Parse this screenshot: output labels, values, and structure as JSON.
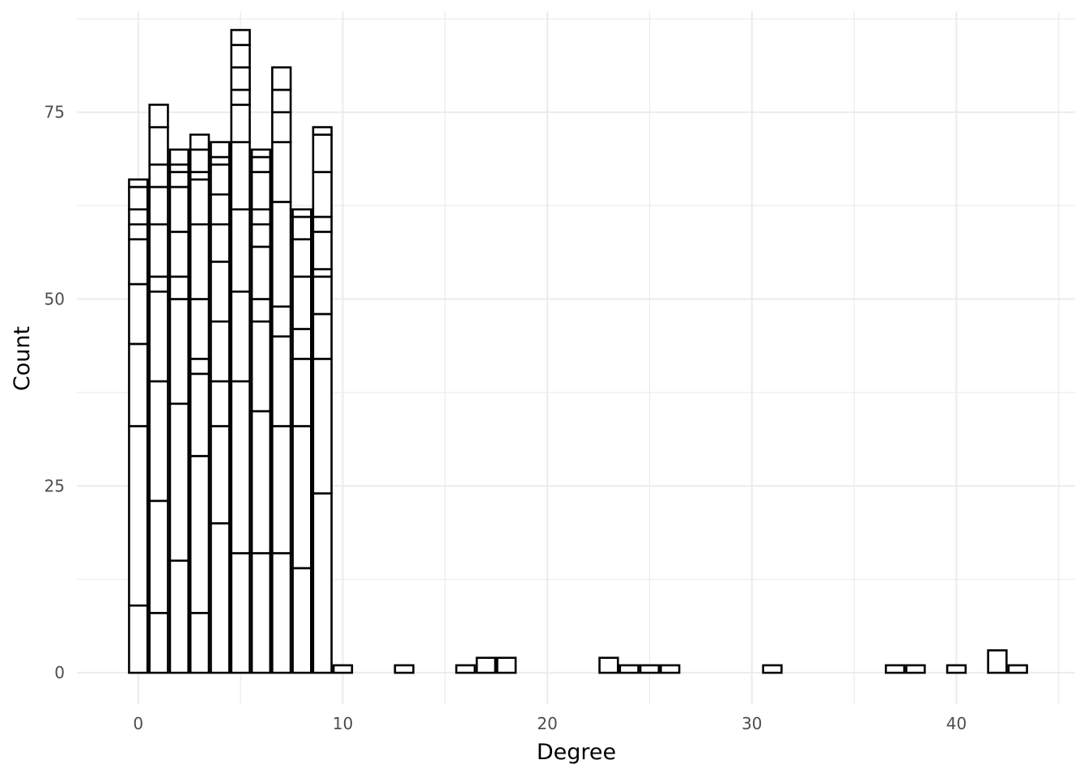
{
  "chart_data": {
    "type": "bar",
    "title": "",
    "xlabel": "Degree",
    "ylabel": "Count",
    "xlim": [
      -3,
      45.8
    ],
    "ylim": [
      -4.2,
      88.5
    ],
    "x_ticks": [
      0,
      10,
      20,
      30,
      40
    ],
    "y_ticks": [
      0,
      25,
      50,
      75
    ],
    "grid": true,
    "legend": "none",
    "bar_fill": "#ffffff",
    "bar_stroke": "#000000",
    "bin_width": 0.9,
    "stacked_bars": [
      {
        "x": 0,
        "boundaries": [
          0,
          9,
          33,
          44,
          52,
          58,
          60,
          62,
          65,
          66
        ]
      },
      {
        "x": 1,
        "boundaries": [
          0,
          8,
          23,
          39,
          51,
          53,
          60,
          65,
          68,
          73,
          76
        ]
      },
      {
        "x": 2,
        "boundaries": [
          0,
          15,
          36,
          50,
          53,
          59,
          65,
          67,
          68,
          70
        ]
      },
      {
        "x": 3,
        "boundaries": [
          0,
          8,
          29,
          40,
          42,
          50,
          60,
          66,
          67,
          70,
          72
        ]
      },
      {
        "x": 4,
        "boundaries": [
          0,
          20,
          33,
          39,
          47,
          55,
          60,
          64,
          68,
          69,
          71
        ]
      },
      {
        "x": 5,
        "boundaries": [
          0,
          16,
          39,
          51,
          62,
          71,
          76,
          78,
          81,
          84,
          86
        ]
      },
      {
        "x": 6,
        "boundaries": [
          0,
          16,
          35,
          47,
          50,
          57,
          60,
          62,
          67,
          69,
          70
        ]
      },
      {
        "x": 7,
        "boundaries": [
          0,
          16,
          33,
          45,
          49,
          63,
          71,
          75,
          78,
          81
        ]
      },
      {
        "x": 8,
        "boundaries": [
          0,
          14,
          33,
          42,
          46,
          53,
          58,
          61,
          62
        ]
      },
      {
        "x": 9,
        "boundaries": [
          0,
          24,
          42,
          48,
          53,
          54,
          59,
          61,
          67,
          72,
          73
        ]
      }
    ],
    "single_bars": [
      {
        "x": 10,
        "value": 1
      },
      {
        "x": 13,
        "value": 1
      },
      {
        "x": 16,
        "value": 1
      },
      {
        "x": 17,
        "value": 2
      },
      {
        "x": 18,
        "value": 2
      },
      {
        "x": 23,
        "value": 2
      },
      {
        "x": 24,
        "value": 1
      },
      {
        "x": 25,
        "value": 1
      },
      {
        "x": 26,
        "value": 1
      },
      {
        "x": 31,
        "value": 1
      },
      {
        "x": 37,
        "value": 1
      },
      {
        "x": 38,
        "value": 1
      },
      {
        "x": 40,
        "value": 1
      },
      {
        "x": 42,
        "value": 3
      },
      {
        "x": 43,
        "value": 1
      }
    ]
  }
}
